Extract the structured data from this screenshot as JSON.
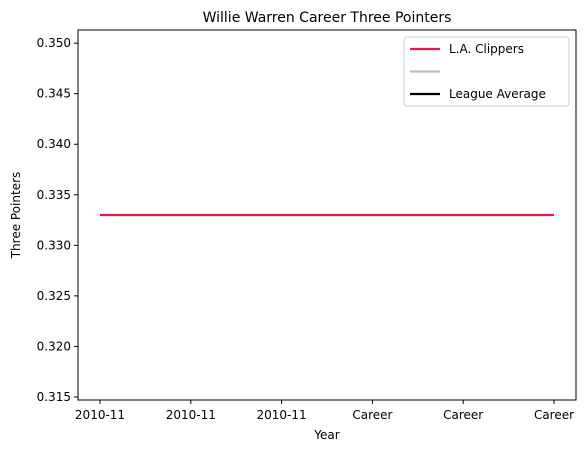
{
  "chart_data": {
    "type": "line",
    "title": "Willie Warren Career Three Pointers",
    "xlabel": "Year",
    "ylabel": "Three Pointers",
    "categories": [
      "2010-11",
      "2010-11",
      "2010-11",
      "Career",
      "Career",
      "Career"
    ],
    "ylim": [
      0.3147,
      0.3513
    ],
    "yticks": [
      "0.315",
      "0.320",
      "0.325",
      "0.330",
      "0.335",
      "0.340",
      "0.345",
      "0.350"
    ],
    "ytick_values": [
      0.315,
      0.32,
      0.325,
      0.33,
      0.335,
      0.34,
      0.345,
      0.35
    ],
    "grid": false,
    "legend_position": "top-right",
    "series": [
      {
        "name": "L.A. Clippers",
        "color": "#e31b4d",
        "values": [
          0.333,
          0.333,
          0.333,
          0.333,
          0.333,
          0.333
        ]
      }
    ],
    "legend": [
      {
        "label": "L.A. Clippers",
        "color": "#e31b4d"
      },
      {
        "label": "",
        "color": "#bebebe"
      },
      {
        "label": "League Average",
        "color": "#000000"
      }
    ]
  }
}
